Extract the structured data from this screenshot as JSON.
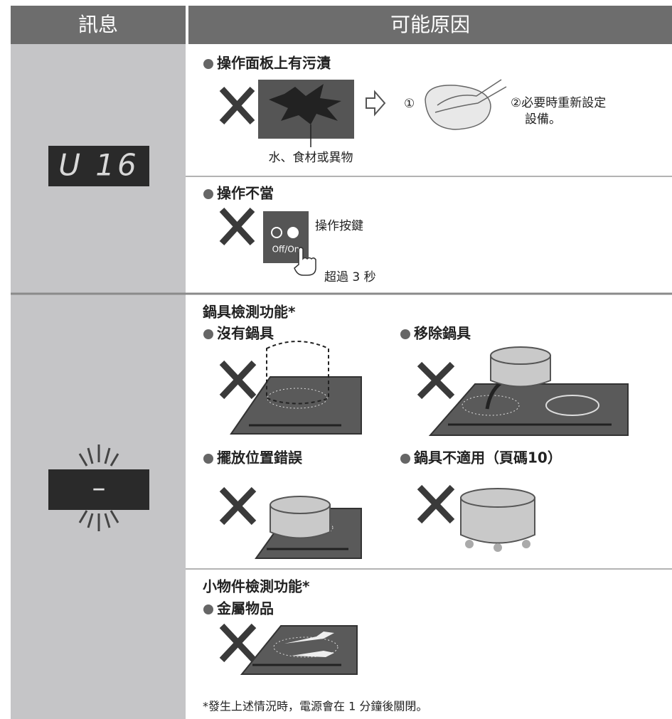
{
  "table": {
    "headers": [
      "訊息",
      "可能原因"
    ],
    "rows": [
      {
        "display": "U 16",
        "causes": [
          {
            "title": "操作面板上有污漬",
            "labels": [
              "水、食材或異物",
              "①",
              "②必要時重新設定",
              "設備。"
            ]
          },
          {
            "title": "操作不當",
            "labels": [
              "操作按鍵",
              "Off/On",
              "超過 3 秒"
            ]
          }
        ]
      },
      {
        "display": "–",
        "causes": [
          {
            "heading": "鍋具檢測功能*",
            "items": [
              "沒有鍋具",
              "移除鍋具",
              "擺放位置錯誤",
              "鍋具不適用（頁碼10）"
            ]
          },
          {
            "heading": "小物件檢測功能*",
            "items": [
              "金屬物品"
            ]
          }
        ]
      }
    ]
  },
  "footnote": "*發生上述情況時，電源會在 1 分鐘後關閉。"
}
